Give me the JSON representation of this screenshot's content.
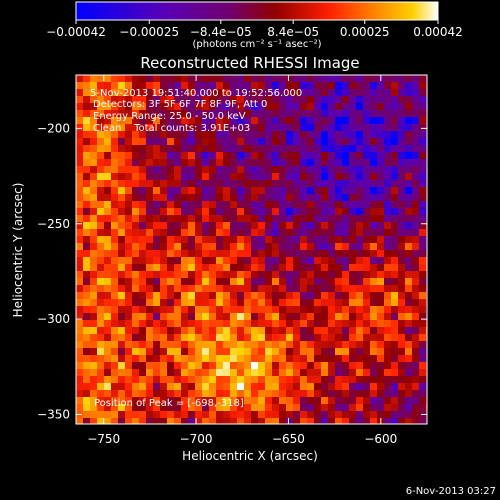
{
  "chart_data": {
    "type": "heatmap",
    "title": "Reconstructed RHESSI Image",
    "xlabel": "Heliocentric X (arcsec)",
    "ylabel": "Heliocentric Y (arcsec)",
    "xlim": [
      -765,
      -575
    ],
    "ylim": [
      -355,
      -172
    ],
    "x_ticks": [
      -750,
      -700,
      -650,
      -600
    ],
    "y_ticks": [
      -200,
      -250,
      -300,
      -350
    ],
    "x_tick_labels": [
      "−750",
      "−700",
      "−650",
      "−600"
    ],
    "y_tick_labels": [
      "−200",
      "−250",
      "−300",
      "−350"
    ],
    "colorbar": {
      "range": [
        -0.00042,
        0.00042
      ],
      "ticks": [
        -0.00042,
        -0.00025,
        -8.4e-05,
        8.4e-05,
        0.00025,
        0.00042
      ],
      "tick_labels": [
        "−0.00042",
        "−0.00025",
        "−8.4e−05",
        "8.4e−05",
        "0.00025",
        "0.00042"
      ],
      "units_label": "(photons cm⁻² s⁻¹ asec⁻²)",
      "colormap": [
        "#0000ff",
        "#5a00b4",
        "#700070",
        "#900000",
        "#ff2000",
        "#ff8000",
        "#ffd000",
        "#ffffff"
      ]
    },
    "annotations": [
      "5-Nov-2013 19:51:40.000 to 19:52:56.000",
      "Detectors: 3F 5F 6F 7F 8F 9F, Att 0",
      "Energy Range: 25.0 - 50.0 keV",
      "Clean    Total counts: 3.91E+03"
    ],
    "peak_label": "Position of Peak = [-698,-318]",
    "grid": false
  },
  "footer": {
    "timestamp": "6-Nov-2013 03:27"
  }
}
